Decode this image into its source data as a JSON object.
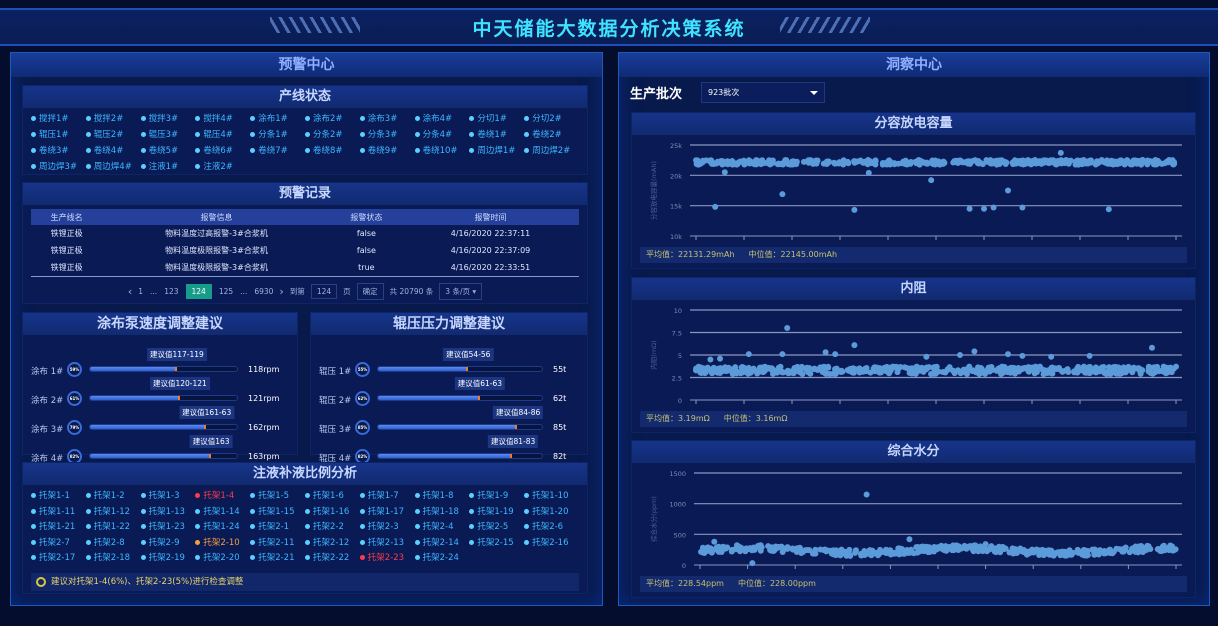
{
  "header": {
    "title": "中天储能大数据分析决策系统"
  },
  "left": {
    "title": "预警中心",
    "line_status": {
      "title": "产线状态",
      "items": [
        "搅拌1#",
        "搅拌2#",
        "搅拌3#",
        "搅拌4#",
        "涂布1#",
        "涂布2#",
        "涂布3#",
        "涂布4#",
        "分切1#",
        "分切2#",
        "辊压1#",
        "辊压2#",
        "辊压3#",
        "辊压4#",
        "分条1#",
        "分条2#",
        "分条3#",
        "分条4#",
        "卷绕1#",
        "卷绕2#",
        "卷绕3#",
        "卷绕4#",
        "卷绕5#",
        "卷绕6#",
        "卷绕7#",
        "卷绕8#",
        "卷绕9#",
        "卷绕10#",
        "周边焊1#",
        "周边焊2#",
        "周边焊3#",
        "周边焊4#",
        "注液1#",
        "注液2#"
      ]
    },
    "alarms": {
      "title": "预警记录",
      "columns": [
        "生产线名",
        "报警信息",
        "报警状态",
        "报警时间"
      ],
      "rows": [
        [
          "铁锂正极",
          "物料温度过高报警-3#合浆机",
          "false",
          "4/16/2020 22:37:11"
        ],
        [
          "铁锂正极",
          "物料温度极限报警-3#合浆机",
          "false",
          "4/16/2020 22:37:09"
        ],
        [
          "铁锂正极",
          "物料温度极限报警-3#合浆机",
          "true",
          "4/16/2020 22:33:51"
        ]
      ],
      "pager": {
        "prev": "‹",
        "pages": [
          "1",
          "...",
          "123",
          "124",
          "125",
          "...",
          "6930"
        ],
        "current": "124",
        "next": "›",
        "goto_label": "到第",
        "goto_value": "124",
        "page_unit": "页",
        "confirm": "确定",
        "total": "共 20790 条",
        "page_size": "3 条/页"
      }
    },
    "coating": {
      "title": "涂布泵速度调整建议",
      "rows": [
        {
          "label": "涂布 1#",
          "percent": 59,
          "percent_text": "59%",
          "tip": "建议值117-119",
          "value": "118rpm"
        },
        {
          "label": "涂布 2#",
          "percent": 61,
          "percent_text": "61%",
          "tip": "建议值120-121",
          "value": "121rpm"
        },
        {
          "label": "涂布 3#",
          "percent": 79,
          "percent_text": "79%",
          "tip": "建议值161-63",
          "value": "162rpm"
        },
        {
          "label": "涂布 4#",
          "percent": 82,
          "percent_text": "82%",
          "tip": "建议值163",
          "value": "163rpm"
        }
      ]
    },
    "rolling": {
      "title": "辊压压力调整建议",
      "rows": [
        {
          "label": "辊压 1#",
          "percent": 55,
          "percent_text": "55%",
          "tip": "建议值54-56",
          "value": "55t"
        },
        {
          "label": "辊压 2#",
          "percent": 62,
          "percent_text": "62%",
          "tip": "建议值61-63",
          "value": "62t"
        },
        {
          "label": "辊压 3#",
          "percent": 85,
          "percent_text": "85%",
          "tip": "建议值84-86",
          "value": "85t"
        },
        {
          "label": "辊压 4#",
          "percent": 82,
          "percent_text": "82%",
          "tip": "建议值81-83",
          "value": "82t"
        }
      ]
    },
    "injection": {
      "title": "注液补液比例分析",
      "items": [
        "托架1-1",
        "托架1-2",
        "托架1-3",
        "托架1-4",
        "托架1-5",
        "托架1-6",
        "托架1-7",
        "托架1-8",
        "托架1-9",
        "托架1-10",
        "托架1-11",
        "托架1-12",
        "托架1-13",
        "托架1-14",
        "托架1-15",
        "托架1-16",
        "托架1-17",
        "托架1-18",
        "托架1-19",
        "托架1-20",
        "托架1-21",
        "托架1-22",
        "托架1-23",
        "托架1-24",
        "托架2-1",
        "托架2-2",
        "托架2-3",
        "托架2-4",
        "托架2-5",
        "托架2-6",
        "托架2-7",
        "托架2-8",
        "托架2-9",
        "托架2-10",
        "托架2-11",
        "托架2-12",
        "托架2-13",
        "托架2-14",
        "托架2-15",
        "托架2-16",
        "托架2-17",
        "托架2-18",
        "托架2-19",
        "托架2-20",
        "托架2-21",
        "托架2-22",
        "托架2-23",
        "托架2-24"
      ],
      "status_colors": {
        "normal": "#3cb8ff",
        "warning": "#f0a040",
        "alarm": "#ff3b4a"
      },
      "warning": [
        "托架2-10"
      ],
      "alarm": [
        "托架1-4",
        "托架2-23"
      ],
      "advice": "建议对托架1-4(6%)、托架2-23(5%)进行检查调整"
    }
  },
  "right": {
    "title": "洞察中心",
    "batch_label": "生产批次",
    "batch_value": "923批次"
  },
  "chart_data": [
    {
      "type": "scatter",
      "title": "分容放电容量",
      "ylabel": "分容放电容量(mAh)",
      "ylim": [
        10000,
        25000
      ],
      "yticks": [
        10000,
        15000,
        20000,
        25000
      ],
      "ytick_labels": [
        "10k",
        "15k",
        "20k",
        "25k"
      ],
      "grid": true,
      "color": "#5b9bd9",
      "band": [
        21500,
        22800
      ],
      "outliers": [
        [
          4,
          14800
        ],
        [
          6,
          20500
        ],
        [
          18,
          16900
        ],
        [
          33,
          14300
        ],
        [
          36,
          20400
        ],
        [
          49,
          19200
        ],
        [
          57,
          14500
        ],
        [
          60,
          14500
        ],
        [
          62,
          14700
        ],
        [
          65,
          17500
        ],
        [
          68,
          14700
        ],
        [
          76,
          23700
        ],
        [
          86,
          14400
        ]
      ],
      "stats": {
        "mean_label": "平均值：",
        "mean": "22131.29mAh",
        "median_label": "中位值：",
        "median": "22145.00mAh"
      }
    },
    {
      "type": "scatter",
      "title": "内阻",
      "ylabel": "内阻(mΩ)",
      "ylim": [
        0,
        10
      ],
      "yticks": [
        0,
        2.5,
        5,
        7.5,
        10
      ],
      "ytick_labels": [
        "0",
        "2.5",
        "5",
        "7.5",
        "10"
      ],
      "grid": true,
      "color": "#5b9bd9",
      "band": [
        2.6,
        4.0
      ],
      "outliers": [
        [
          3,
          4.5
        ],
        [
          5,
          4.6
        ],
        [
          11,
          5.1
        ],
        [
          18,
          5.1
        ],
        [
          19,
          8.0
        ],
        [
          27,
          5.3
        ],
        [
          29,
          5.1
        ],
        [
          33,
          6.1
        ],
        [
          48,
          4.8
        ],
        [
          55,
          5.0
        ],
        [
          58,
          5.4
        ],
        [
          65,
          5.1
        ],
        [
          68,
          4.9
        ],
        [
          74,
          4.8
        ],
        [
          82,
          4.9
        ],
        [
          95,
          5.8
        ]
      ],
      "stats": {
        "mean_label": "平均值：",
        "mean": "3.19mΩ",
        "median_label": "中位值：",
        "median": "3.16mΩ"
      }
    },
    {
      "type": "scatter",
      "title": "综合水分",
      "ylabel": "综合水分(ppm)",
      "ylim": [
        0,
        1500
      ],
      "yticks": [
        0,
        500,
        1000,
        1500
      ],
      "ytick_labels": [
        "0",
        "500",
        "1000",
        "1500"
      ],
      "grid": true,
      "color": "#5b9bd9",
      "band": [
        150,
        320
      ],
      "outliers": [
        [
          3,
          380
        ],
        [
          11,
          30
        ],
        [
          35,
          1150
        ],
        [
          44,
          420
        ],
        [
          60,
          340
        ]
      ],
      "stats": {
        "mean_label": "平均值：",
        "mean": "228.54ppm",
        "median_label": "中位值：",
        "median": "228.00ppm"
      }
    }
  ]
}
